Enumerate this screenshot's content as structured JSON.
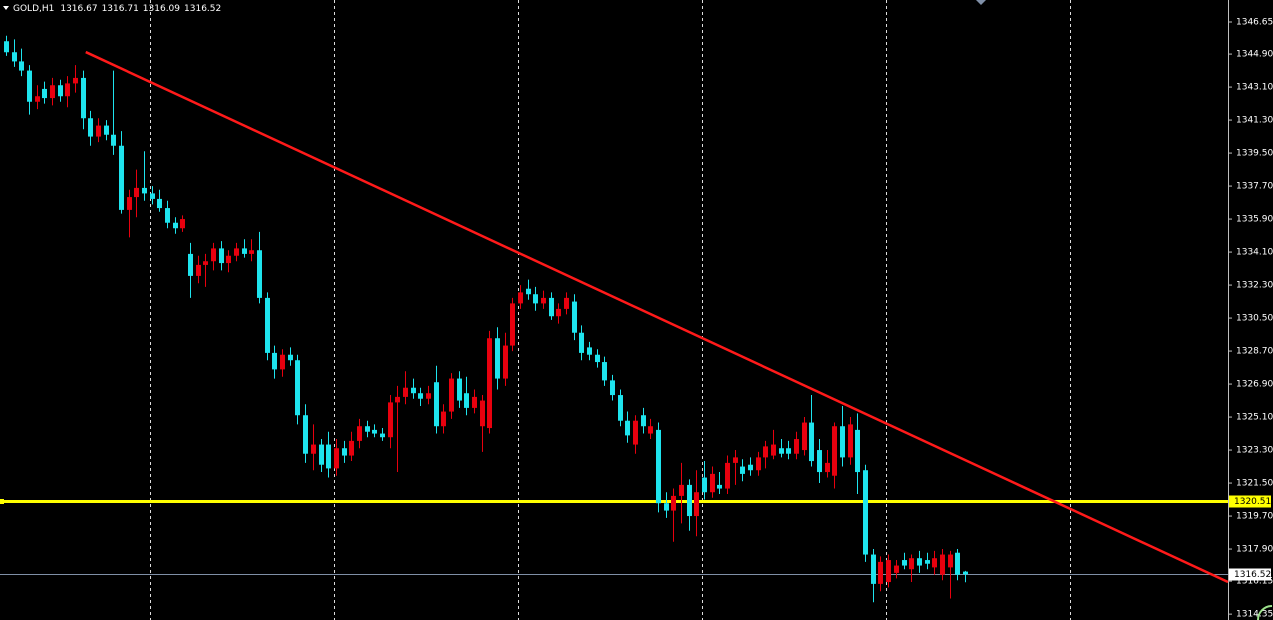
{
  "chart_data": {
    "type": "candlestick",
    "symbol": "GOLD,H1",
    "up_color": "#e8000e",
    "down_color": "#1ee4ee",
    "xlim": [
      -0.78,
      159.3
    ],
    "ylim": [
      1314.03,
      1347.85
    ],
    "yticks": [
      1346.65,
      {
        "value": 1344.9,
        "label": "1344.90"
      },
      {
        "value": 1343.1,
        "label": "1343.10"
      },
      {
        "value": 1341.3,
        "label": "1341.30"
      },
      {
        "value": 1339.5,
        "label": "1339.50"
      },
      {
        "value": 1337.7,
        "label": "1337.70"
      },
      {
        "value": 1335.9,
        "label": "1335.90"
      },
      {
        "value": 1334.1,
        "label": "1334.10"
      },
      {
        "value": 1332.3,
        "label": "1332.30"
      },
      {
        "value": 1330.5,
        "label": "1330.50"
      },
      {
        "value": 1328.7,
        "label": "1328.70"
      },
      {
        "value": 1326.9,
        "label": "1326.90"
      },
      {
        "value": 1325.1,
        "label": "1325.10"
      },
      {
        "value": 1323.3,
        "label": "1323.30"
      },
      {
        "value": 1321.5,
        "label": "1321.50"
      },
      {
        "value": 1319.7,
        "label": "1319.70"
      },
      {
        "value": 1317.9,
        "label": "1317.90"
      },
      1316.15,
      1314.35
    ],
    "hline": {
      "value": 1320.51,
      "color": "#ffff00"
    },
    "bid": {
      "value": 1316.52,
      "color": "#7f8fa6"
    },
    "trendline": {
      "color": "#ff1a1a",
      "x": [
        10.4,
        159.3
      ],
      "y": [
        1345.01,
        1316.1
      ]
    },
    "candles": [
      [
        1345.6,
        1345.9,
        1344.8,
        1345.0
      ],
      [
        1345.0,
        1345.7,
        1344.2,
        1344.5
      ],
      [
        1344.5,
        1345.2,
        1343.7,
        1344.0
      ],
      [
        1344.0,
        1344.3,
        1341.6,
        1342.3
      ],
      [
        1342.3,
        1343.2,
        1341.9,
        1342.6
      ],
      [
        1343.0,
        1343.4,
        1342.2,
        1342.5
      ],
      [
        1342.5,
        1343.6,
        1342.1,
        1343.2
      ],
      [
        1343.2,
        1343.5,
        1342.3,
        1342.6
      ],
      [
        1342.6,
        1343.7,
        1342.0,
        1343.3
      ],
      [
        1343.3,
        1344.3,
        1342.8,
        1343.6
      ],
      [
        1343.6,
        1344.0,
        1340.8,
        1341.4
      ],
      [
        1341.4,
        1341.8,
        1339.9,
        1340.4
      ],
      [
        1340.4,
        1341.4,
        1340.1,
        1341.0
      ],
      [
        1341.0,
        1341.3,
        1340.2,
        1340.5
      ],
      [
        1340.5,
        1344.0,
        1339.4,
        1339.9
      ],
      [
        1339.9,
        1340.7,
        1336.2,
        1336.4
      ],
      [
        1336.4,
        1337.5,
        1334.9,
        1337.1
      ],
      [
        1337.1,
        1338.6,
        1336.0,
        1337.6
      ],
      [
        1337.6,
        1339.6,
        1336.9,
        1337.3
      ],
      [
        1337.3,
        1337.7,
        1336.7,
        1337.0
      ],
      [
        1337.0,
        1337.5,
        1336.3,
        1336.5
      ],
      [
        1336.5,
        1336.9,
        1335.4,
        1335.7
      ],
      [
        1335.7,
        1336.0,
        1335.1,
        1335.4
      ],
      [
        1335.4,
        1336.1,
        1335.2,
        1335.9
      ],
      [
        1334.0,
        1334.6,
        1331.6,
        1332.8
      ],
      [
        1332.8,
        1333.9,
        1332.4,
        1333.4
      ],
      [
        1333.4,
        1334.0,
        1332.2,
        1333.6
      ],
      [
        1333.6,
        1334.6,
        1333.1,
        1334.3
      ],
      [
        1334.3,
        1334.7,
        1333.1,
        1333.5
      ],
      [
        1333.5,
        1334.2,
        1333.0,
        1333.9
      ],
      [
        1333.9,
        1334.6,
        1333.6,
        1334.3
      ],
      [
        1334.3,
        1334.8,
        1333.8,
        1334.0
      ],
      [
        1334.0,
        1334.8,
        1333.6,
        1334.2
      ],
      [
        1334.2,
        1335.2,
        1331.3,
        1331.6
      ],
      [
        1331.6,
        1331.9,
        1328.2,
        1328.6
      ],
      [
        1328.6,
        1329.0,
        1327.2,
        1327.7
      ],
      [
        1327.7,
        1328.8,
        1327.3,
        1328.5
      ],
      [
        1328.5,
        1328.9,
        1327.9,
        1328.2
      ],
      [
        1328.2,
        1328.5,
        1324.7,
        1325.2
      ],
      [
        1325.2,
        1325.8,
        1322.6,
        1323.1
      ],
      [
        1323.1,
        1324.7,
        1322.2,
        1323.6
      ],
      [
        1323.6,
        1323.9,
        1322.1,
        1322.5
      ],
      [
        1323.6,
        1324.3,
        1321.8,
        1322.3
      ],
      [
        1322.3,
        1323.9,
        1321.9,
        1323.4
      ],
      [
        1323.4,
        1323.8,
        1322.6,
        1323.0
      ],
      [
        1323.0,
        1324.3,
        1322.7,
        1323.8
      ],
      [
        1323.8,
        1325.0,
        1323.4,
        1324.6
      ],
      [
        1324.6,
        1324.9,
        1324.0,
        1324.3
      ],
      [
        1324.4,
        1324.7,
        1324.0,
        1324.2
      ],
      [
        1324.2,
        1324.5,
        1323.8,
        1324.0
      ],
      [
        1324.0,
        1326.3,
        1323.4,
        1325.9
      ],
      [
        1325.9,
        1326.8,
        1322.1,
        1326.2
      ],
      [
        1326.2,
        1327.6,
        1325.8,
        1326.7
      ],
      [
        1326.7,
        1327.2,
        1326.1,
        1326.4
      ],
      [
        1326.4,
        1326.7,
        1325.7,
        1326.1
      ],
      [
        1326.1,
        1326.8,
        1325.8,
        1326.4
      ],
      [
        1327.0,
        1327.9,
        1324.2,
        1324.6
      ],
      [
        1324.6,
        1325.8,
        1324.2,
        1325.4
      ],
      [
        1325.4,
        1327.5,
        1325.0,
        1327.2
      ],
      [
        1327.2,
        1327.6,
        1325.6,
        1326.0
      ],
      [
        1326.4,
        1327.3,
        1325.2,
        1325.6
      ],
      [
        1325.6,
        1326.6,
        1325.3,
        1326.2
      ],
      [
        1324.6,
        1326.3,
        1323.2,
        1326.0
      ],
      [
        1324.5,
        1329.8,
        1324.2,
        1329.4
      ],
      [
        1329.4,
        1330.0,
        1326.6,
        1327.2
      ],
      [
        1327.2,
        1329.7,
        1326.8,
        1329.0
      ],
      [
        1329.0,
        1331.6,
        1328.7,
        1331.3
      ],
      [
        1331.3,
        1332.3,
        1331.0,
        1331.9
      ],
      [
        1332.1,
        1332.6,
        1331.5,
        1331.8
      ],
      [
        1331.8,
        1332.2,
        1330.9,
        1331.3
      ],
      [
        1331.3,
        1332.0,
        1331.0,
        1331.6
      ],
      [
        1331.6,
        1331.9,
        1330.4,
        1330.6
      ],
      [
        1330.6,
        1331.3,
        1330.2,
        1331.0
      ],
      [
        1331.0,
        1331.9,
        1330.7,
        1331.6
      ],
      [
        1331.4,
        1331.8,
        1329.3,
        1329.7
      ],
      [
        1329.7,
        1330.1,
        1328.2,
        1328.6
      ],
      [
        1328.9,
        1329.2,
        1328.2,
        1328.5
      ],
      [
        1328.5,
        1328.8,
        1327.8,
        1328.1
      ],
      [
        1328.1,
        1328.4,
        1326.8,
        1327.1
      ],
      [
        1327.1,
        1327.4,
        1326.0,
        1326.3
      ],
      [
        1326.3,
        1326.6,
        1324.6,
        1324.9
      ],
      [
        1324.9,
        1325.4,
        1323.7,
        1324.1
      ],
      [
        1323.6,
        1325.2,
        1323.1,
        1324.9
      ],
      [
        1325.2,
        1325.6,
        1324.2,
        1324.6
      ],
      [
        1324.2,
        1325.0,
        1323.9,
        1324.6
      ],
      [
        1324.4,
        1324.8,
        1319.9,
        1320.4
      ],
      [
        1320.4,
        1321.0,
        1319.6,
        1320.0
      ],
      [
        1320.0,
        1321.2,
        1318.3,
        1320.8
      ],
      [
        1320.8,
        1322.6,
        1319.3,
        1321.4
      ],
      [
        1321.4,
        1321.7,
        1318.9,
        1319.7
      ],
      [
        1319.7,
        1322.2,
        1318.6,
        1321.0
      ],
      [
        1321.8,
        1322.7,
        1320.6,
        1321.0
      ],
      [
        1321.0,
        1322.4,
        1320.7,
        1322.0
      ],
      [
        1321.4,
        1322.1,
        1320.9,
        1321.2
      ],
      [
        1321.2,
        1323.0,
        1320.9,
        1322.6
      ],
      [
        1322.6,
        1323.3,
        1321.4,
        1322.9
      ],
      [
        1322.4,
        1322.8,
        1321.6,
        1322.0
      ],
      [
        1322.5,
        1322.9,
        1321.9,
        1322.2
      ],
      [
        1322.2,
        1323.2,
        1321.9,
        1322.9
      ],
      [
        1322.9,
        1323.8,
        1322.3,
        1323.5
      ],
      [
        1323.0,
        1324.4,
        1322.8,
        1323.6
      ],
      [
        1323.4,
        1323.9,
        1322.9,
        1323.1
      ],
      [
        1323.4,
        1323.8,
        1322.8,
        1323.1
      ],
      [
        1323.1,
        1324.3,
        1322.8,
        1323.9
      ],
      [
        1323.3,
        1325.1,
        1323.0,
        1324.8
      ],
      [
        1324.8,
        1326.3,
        1322.4,
        1322.7
      ],
      [
        1323.3,
        1323.9,
        1321.5,
        1322.1
      ],
      [
        1322.1,
        1323.3,
        1321.8,
        1322.6
      ],
      [
        1321.9,
        1324.8,
        1321.2,
        1324.6
      ],
      [
        1324.6,
        1325.7,
        1322.4,
        1322.9
      ],
      [
        1322.9,
        1325.1,
        1322.5,
        1324.7
      ],
      [
        1324.4,
        1325.3,
        1320.9,
        1322.1
      ],
      [
        1322.2,
        1322.5,
        1317.2,
        1317.6
      ],
      [
        1317.6,
        1317.9,
        1315.0,
        1316.0
      ],
      [
        1316.0,
        1317.5,
        1315.6,
        1317.2
      ],
      [
        1316.1,
        1317.6,
        1315.8,
        1317.3
      ],
      [
        1316.6,
        1317.3,
        1316.3,
        1317.0
      ],
      [
        1317.3,
        1317.7,
        1316.8,
        1317.0
      ],
      [
        1316.8,
        1317.6,
        1316.1,
        1317.4
      ],
      [
        1317.4,
        1317.8,
        1316.6,
        1317.0
      ],
      [
        1317.3,
        1317.7,
        1316.8,
        1317.1
      ],
      [
        1316.9,
        1317.8,
        1316.5,
        1317.4
      ],
      [
        1316.5,
        1317.9,
        1316.2,
        1317.6
      ],
      [
        1316.9,
        1317.8,
        1315.2,
        1317.6
      ],
      [
        1317.7,
        1317.9,
        1316.2,
        1316.5
      ],
      [
        1316.67,
        1316.71,
        1316.09,
        1316.52
      ]
    ]
  }
}
